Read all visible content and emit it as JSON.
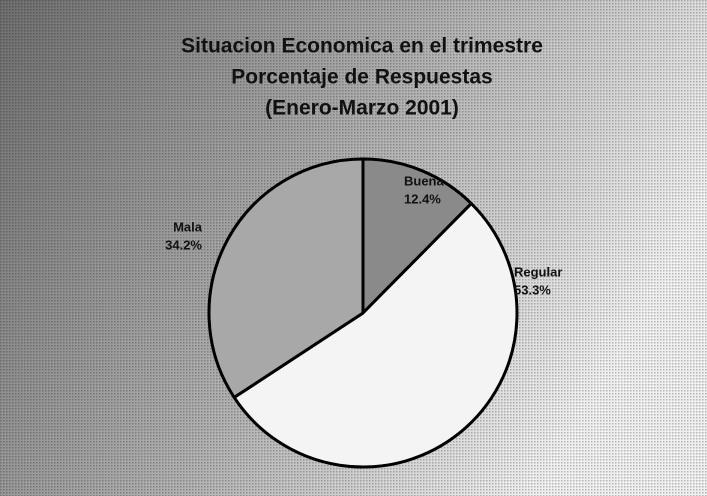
{
  "chart_data": {
    "type": "pie",
    "title": [
      "Situacion Economica en el trimestre",
      "Porcentaje de Respuestas",
      "(Enero-Marzo 2001)"
    ],
    "categories": [
      "Buena",
      "Regular",
      "Mala"
    ],
    "values": [
      12.4,
      53.3,
      34.2
    ],
    "value_labels": [
      "12.4%",
      "53.3%",
      "34.2%"
    ],
    "colors": [
      "#8a8a8a",
      "#f4f4f4",
      "#a8a8a8"
    ]
  }
}
